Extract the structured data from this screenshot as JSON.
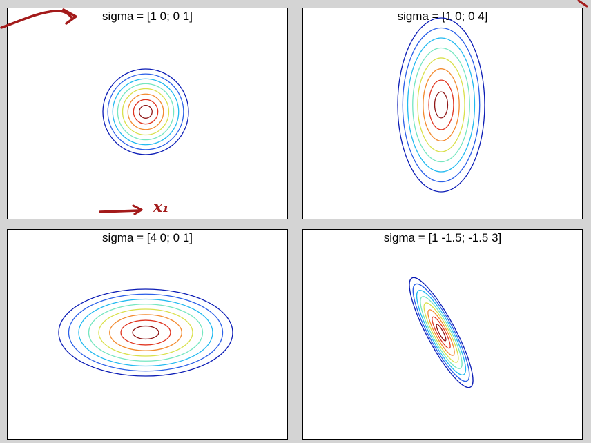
{
  "chart_data": [
    {
      "type": "contour",
      "title": "sigma = [1 0; 0 1]",
      "sigma": [
        [
          1,
          0
        ],
        [
          0,
          1
        ]
      ],
      "levels": 7,
      "colormap": "jet",
      "colors": [
        "#0a1bb5",
        "#2a5fe8",
        "#21b9f0",
        "#75e6c0",
        "#d9e04a",
        "#f38a2e",
        "#e0341f",
        "#8e1414"
      ]
    },
    {
      "type": "contour",
      "title": "sigma = [1 0; 0 4]",
      "sigma": [
        [
          1,
          0
        ],
        [
          0,
          4
        ]
      ],
      "levels": 7,
      "colormap": "jet",
      "colors": [
        "#0a1bb5",
        "#2a5fe8",
        "#21b9f0",
        "#75e6c0",
        "#d9e04a",
        "#f38a2e",
        "#e0341f",
        "#8e1414"
      ]
    },
    {
      "type": "contour",
      "title": "sigma = [4 0; 0 1]",
      "sigma": [
        [
          4,
          0
        ],
        [
          0,
          1
        ]
      ],
      "levels": 7,
      "colormap": "jet",
      "colors": [
        "#0a1bb5",
        "#2a5fe8",
        "#21b9f0",
        "#75e6c0",
        "#d9e04a",
        "#f38a2e",
        "#e0341f",
        "#8e1414"
      ]
    },
    {
      "type": "contour",
      "title": "sigma = [1 -1.5; -1.5 3]",
      "sigma": [
        [
          1,
          -1.5
        ],
        [
          -1.5,
          3
        ]
      ],
      "levels": 7,
      "colormap": "jet",
      "colors": [
        "#0a1bb5",
        "#2a5fe8",
        "#21b9f0",
        "#75e6c0",
        "#d9e04a",
        "#f38a2e",
        "#e0341f",
        "#8e1414"
      ]
    }
  ],
  "annotations": {
    "x1_label": "x₁",
    "ink_color": "#a31a1a"
  }
}
